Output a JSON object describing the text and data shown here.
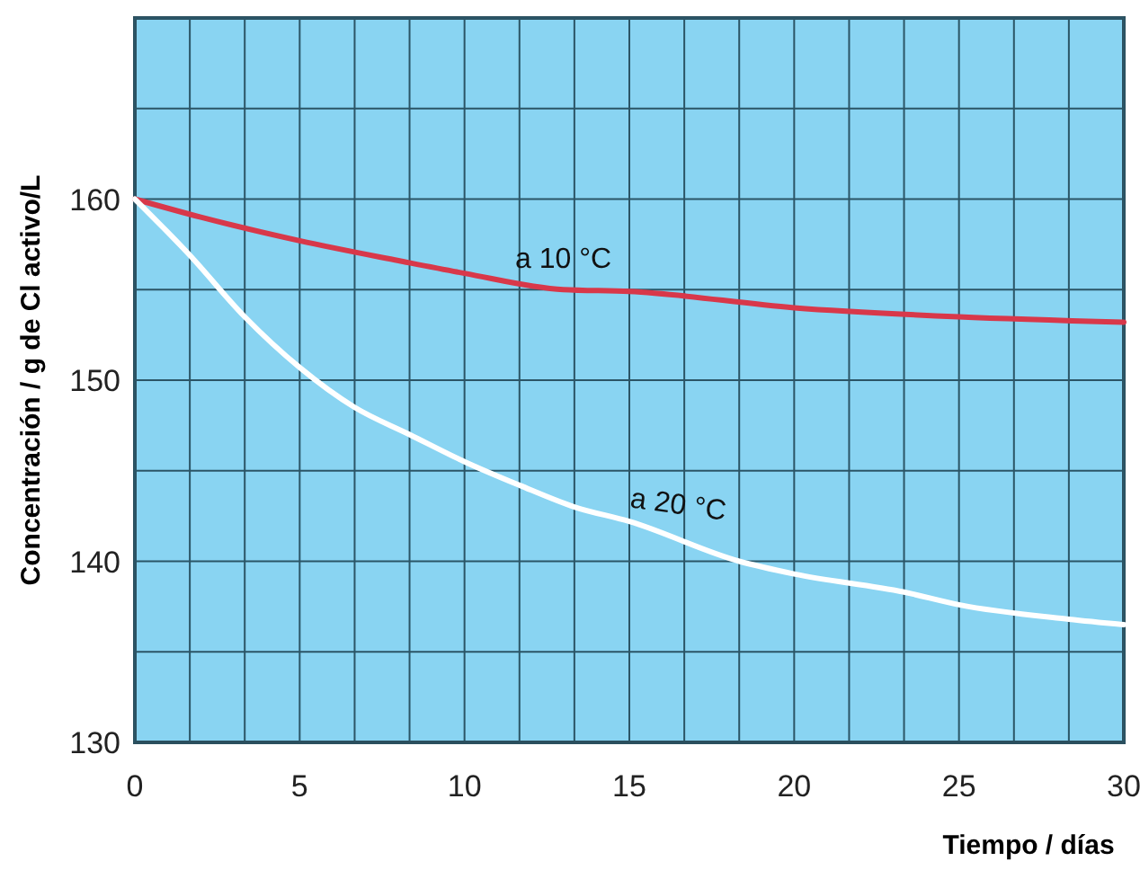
{
  "chart_data": {
    "type": "line",
    "xlabel": "Tiempo / días",
    "ylabel": "Concentración / g de Cl activo/L",
    "xlim": [
      0,
      30
    ],
    "ylim": [
      130,
      170
    ],
    "xticks": [
      0,
      {
        "value": 1.667,
        "label": null
      },
      {
        "value": 3.333,
        "label": null
      },
      5,
      {
        "value": 6.667,
        "label": null
      },
      {
        "value": 8.333,
        "label": null
      },
      10,
      {
        "value": 11.667,
        "label": null
      },
      {
        "value": 13.333,
        "label": null
      },
      15,
      {
        "value": 16.667,
        "label": null
      },
      {
        "value": 18.333,
        "label": null
      },
      20,
      {
        "value": 21.667,
        "label": null
      },
      {
        "value": 23.333,
        "label": null
      },
      25,
      {
        "value": 26.667,
        "label": null
      },
      {
        "value": 28.333,
        "label": null
      },
      30
    ],
    "yticks": [
      130,
      {
        "value": 135,
        "label": null
      },
      140,
      {
        "value": 145,
        "label": null
      },
      150,
      {
        "value": 155,
        "label": null
      },
      160,
      {
        "value": 165,
        "label": null
      },
      {
        "value": 170,
        "label": null
      }
    ],
    "grid": true,
    "marker": "none",
    "line_style": "solid",
    "legend": false,
    "series": [
      {
        "name": "a 10 °C",
        "color": "#d8384a",
        "x": [
          0,
          2,
          5,
          8,
          10,
          13,
          15,
          20,
          25,
          30
        ],
        "values": [
          160,
          159,
          157.7,
          156.6,
          155.9,
          155,
          154.9,
          154,
          153.5,
          153.2
        ]
      },
      {
        "name": "a 20 °C",
        "color": "#ffffff",
        "x": [
          0,
          1.667,
          3.333,
          5,
          6.667,
          8.333,
          10,
          11.667,
          13.333,
          15,
          18.333,
          20,
          23.333,
          25,
          28.333,
          30
        ],
        "values": [
          160,
          156.9,
          153.5,
          150.7,
          148.5,
          147,
          145.5,
          144.2,
          143,
          142.2,
          140,
          139.3,
          138.3,
          137.6,
          136.8,
          136.5
        ]
      }
    ]
  }
}
